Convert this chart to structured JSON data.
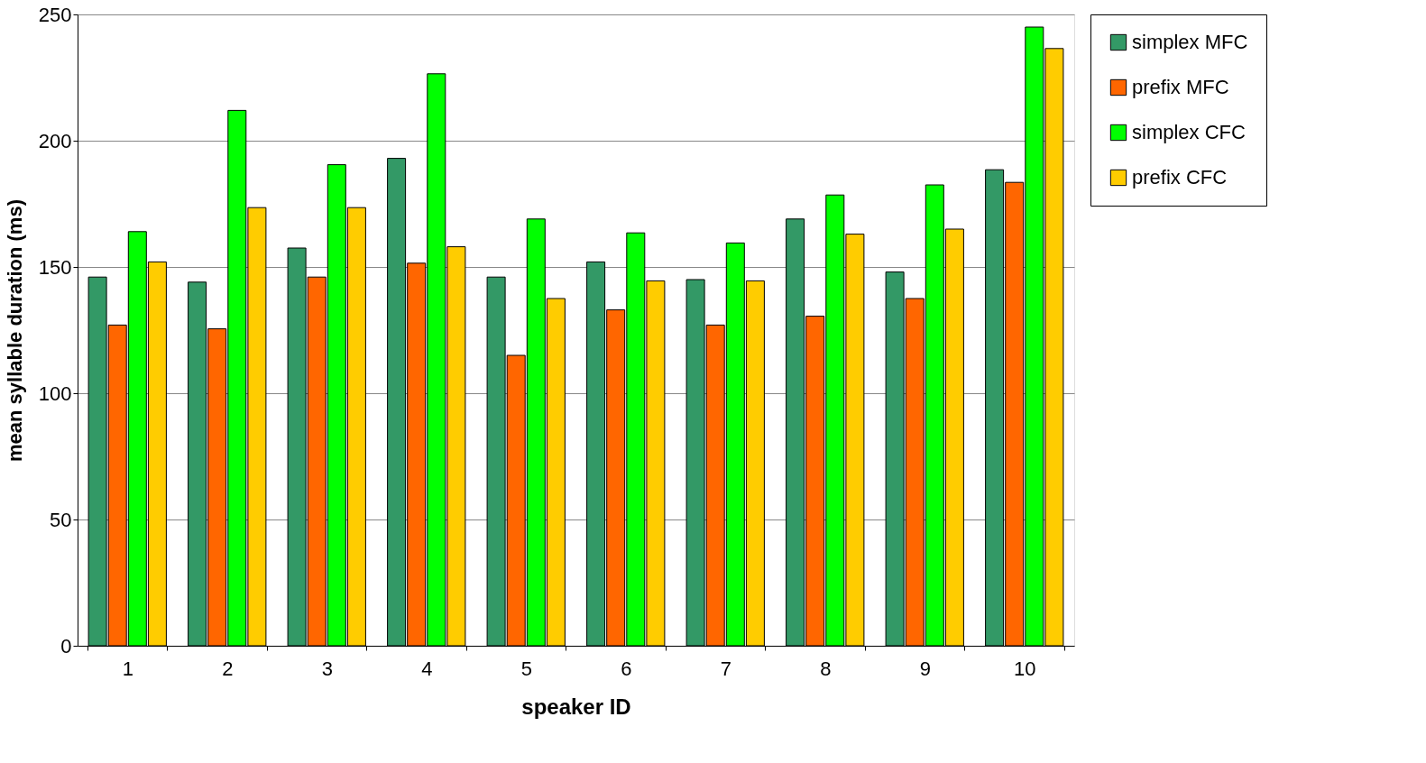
{
  "chart_data": {
    "type": "bar",
    "xlabel": "speaker ID",
    "ylabel": "mean syllable duration (ms)",
    "categories": [
      "1",
      "2",
      "3",
      "4",
      "5",
      "6",
      "7",
      "8",
      "9",
      "10"
    ],
    "series": [
      {
        "name": "simplex MFC",
        "color": "#339966",
        "values": [
          146,
          144,
          157.5,
          193,
          146,
          152,
          145,
          169,
          148,
          188.5
        ]
      },
      {
        "name": "prefix MFC",
        "color": "#ff6600",
        "values": [
          127,
          125.5,
          146,
          151.5,
          115,
          133,
          127,
          130.5,
          137.5,
          183.5
        ]
      },
      {
        "name": "simplex CFC",
        "color": "#00ff00",
        "values": [
          164,
          212,
          190.5,
          226.5,
          169,
          163.5,
          159.5,
          178.5,
          182.5,
          245
        ]
      },
      {
        "name": "prefix CFC",
        "color": "#ffcc00",
        "values": [
          152,
          173.5,
          173.5,
          158,
          137.5,
          144.5,
          144.5,
          163,
          165,
          236.5
        ]
      }
    ],
    "ylim": [
      0,
      250
    ],
    "yticks": [
      0,
      50,
      100,
      150,
      200,
      250
    ],
    "grid": "y",
    "legend": "right"
  }
}
